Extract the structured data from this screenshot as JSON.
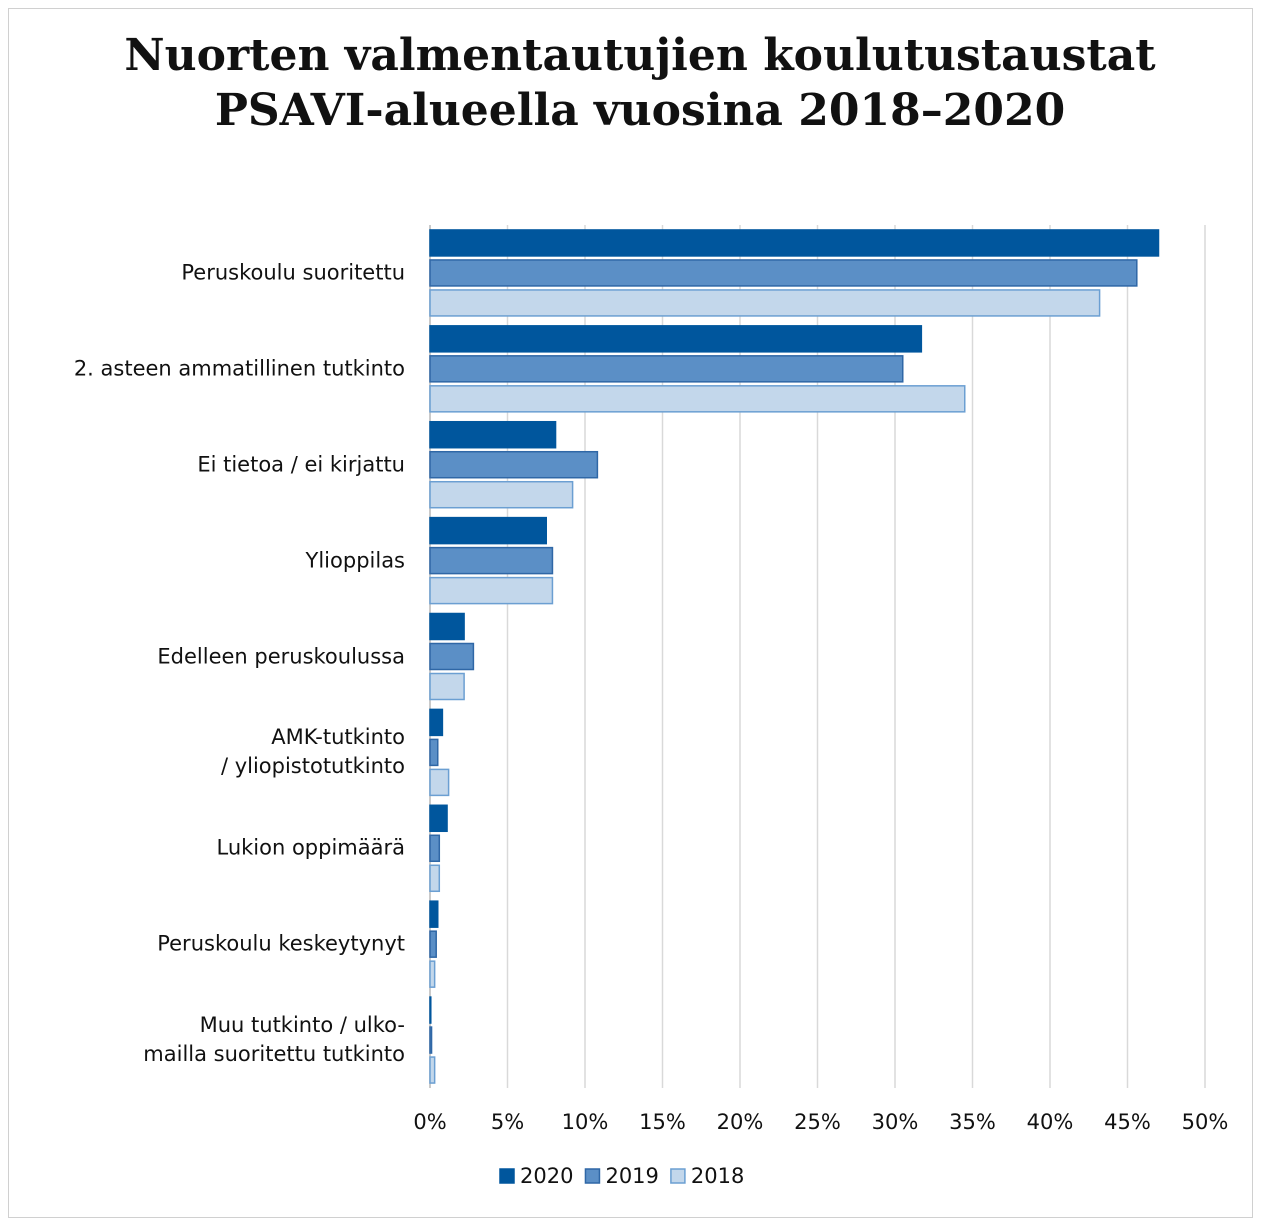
{
  "chart_data": {
    "type": "bar",
    "orientation": "horizontal",
    "title": "Nuorten valmentautujien koulutustaustat PSAVI-alueella vuosina 2018–2020",
    "categories": [
      "Peruskoulu suoritettu",
      "2. asteen ammatillinen tutkinto",
      "Ei tietoa / ei kirjattu",
      "Ylioppilas",
      "Edelleen peruskoulussa",
      "AMK-tutkinto\n/ yliopistotutkinto",
      "Lukion oppimäärä",
      "Peruskoulu keskeytynyt",
      "Muu tutkinto / ulko-\nmailla suoritettu tutkinto"
    ],
    "series": [
      {
        "name": "2020",
        "color": "#00569d",
        "stroke": "#00569d",
        "values": [
          47.0,
          31.7,
          8.1,
          7.5,
          2.2,
          0.8,
          1.1,
          0.5,
          0.05
        ]
      },
      {
        "name": "2019",
        "color": "#5b8fc6",
        "stroke": "#2f67a6",
        "values": [
          45.6,
          30.5,
          10.8,
          7.9,
          2.8,
          0.5,
          0.6,
          0.4,
          0.1
        ]
      },
      {
        "name": "2018",
        "color": "#c3d7eb",
        "stroke": "#6b9fd2",
        "values": [
          43.2,
          34.5,
          9.2,
          7.9,
          2.2,
          1.2,
          0.6,
          0.3,
          0.3
        ]
      }
    ],
    "xlim": [
      0,
      50
    ],
    "xticks": [
      {
        "value": 0,
        "label": "0%"
      },
      {
        "value": 5,
        "label": "5%"
      },
      {
        "value": 10,
        "label": "10%"
      },
      {
        "value": 15,
        "label": "15%"
      },
      {
        "value": 20,
        "label": "20%"
      },
      {
        "value": 25,
        "label": "25%"
      },
      {
        "value": 30,
        "label": "30%"
      },
      {
        "value": 35,
        "label": "35%"
      },
      {
        "value": 40,
        "label": "40%"
      },
      {
        "value": 45,
        "label": "45%"
      },
      {
        "value": 50,
        "label": "50%"
      }
    ],
    "grid": true,
    "legend": "bottom"
  }
}
